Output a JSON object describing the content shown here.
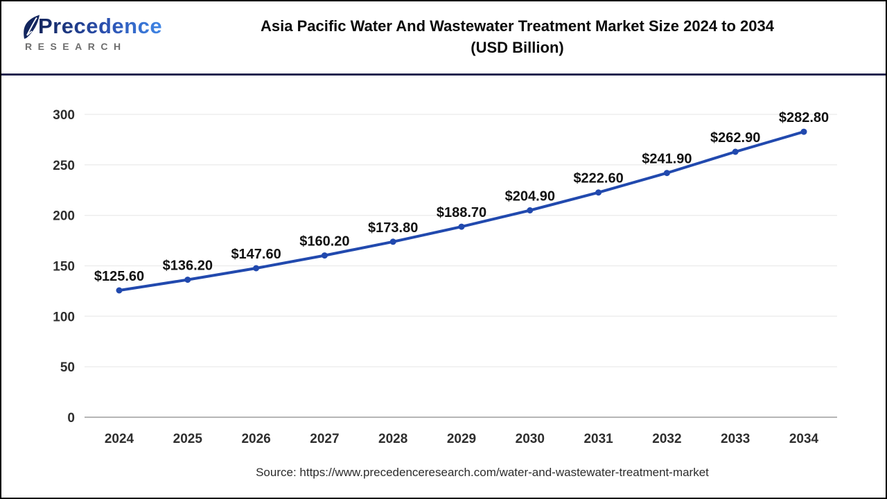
{
  "logo": {
    "brand": "Precedence",
    "sub": "RESEARCH"
  },
  "header": {
    "title_line1": "Asia Pacific Water And Wastewater Treatment Market Size 2024 to 2034",
    "title_line2": "(USD Billion)"
  },
  "chart_data": {
    "type": "line",
    "title": "Asia Pacific Water And Wastewater Treatment Market Size 2024 to 2034 (USD Billion)",
    "categories": [
      "2024",
      "2025",
      "2026",
      "2027",
      "2028",
      "2029",
      "2030",
      "2031",
      "2032",
      "2033",
      "2034"
    ],
    "values": [
      125.6,
      136.2,
      147.6,
      160.2,
      173.8,
      188.7,
      204.9,
      222.6,
      241.9,
      262.9,
      282.8
    ],
    "data_labels": [
      "$125.60",
      "$136.20",
      "$147.60",
      "$160.20",
      "$173.80",
      "$188.70",
      "$204.90",
      "$222.60",
      "$241.90",
      "$262.90",
      "$282.80"
    ],
    "xlabel": "",
    "ylabel": "",
    "ylim": [
      0,
      300
    ],
    "yticks": [
      0,
      50,
      100,
      150,
      200,
      250,
      300
    ],
    "grid": "horizontal",
    "legend": "none"
  },
  "style": {
    "line_color": "#2149AE",
    "marker_color": "#2149AE",
    "grid_color": "#EEEEEE",
    "baseline_color": "#B5B5B5",
    "axis_text_color": "#2E2E2E",
    "data_label_color": "#111111",
    "header_rule_color": "#23254F",
    "frame_color": "#000000",
    "logo_navy": "#13265E",
    "logo_blue": "#3F86E6",
    "logo_gray": "#6E6E6E"
  },
  "source": {
    "label": "Source: https://www.precedenceresearch.com/water-and-wastewater-treatment-market"
  }
}
